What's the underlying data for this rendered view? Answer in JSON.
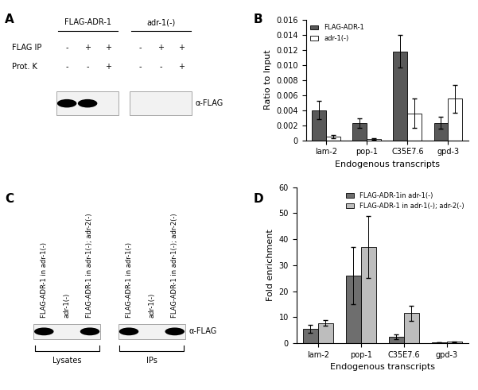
{
  "blots": [
    {
      "panel": "A",
      "groups": [
        {
          "label": "FLAG-ADR-1",
          "lanes": 3
        },
        {
          "label": "adr-1(-)",
          "lanes": 3
        }
      ],
      "rows": [
        {
          "label": "FLAG IP",
          "values": [
            "-",
            "+",
            "+",
            "-",
            "+",
            "+"
          ]
        },
        {
          "label": "Prot. K",
          "values": [
            "-",
            "-",
            "+",
            "-",
            "-",
            "+"
          ]
        }
      ],
      "bands": [
        true,
        true,
        false,
        false,
        false,
        false
      ],
      "antibody": "α-FLAG"
    },
    {
      "panel": "C",
      "lane_labels": [
        "FLAG-ADR-1 in adr-1(-)",
        "adr-1(-)",
        "FLAG-ADR-1 in adr-1(-); adr-2(-)",
        "FLAG-ADR-1 in adr-1(-)",
        "adr-1(-)",
        "FLAG-ADR-1 in adr-1(-); adr-2(-)"
      ],
      "groups": [
        {
          "label": "Lysates",
          "lanes": 3
        },
        {
          "label": "IPs",
          "lanes": 3
        }
      ],
      "bands": [
        true,
        false,
        true,
        true,
        false,
        true
      ],
      "antibody": "α-FLAG"
    }
  ],
  "chart_data": [
    {
      "panel": "B",
      "type": "bar",
      "categories": [
        "lam-2",
        "pop-1",
        "C35E7.6",
        "gpd-3"
      ],
      "x_label": "Endogenous transcripts",
      "y_label": "Ratio to Input",
      "ylim": [
        0,
        0.016
      ],
      "yticks": [
        0,
        0.002,
        0.004,
        0.006,
        0.008,
        {
          "value": 0.01,
          "label": "0.010"
        },
        0.012,
        0.014,
        0.016
      ],
      "legend": "upper left",
      "series": [
        {
          "name": "FLAG-ADR-1",
          "color": "#595959",
          "values": [
            0.004,
            0.0023,
            0.0118,
            0.0023
          ],
          "errors": [
            0.0012,
            0.0006,
            0.0022,
            0.0008
          ]
        },
        {
          "name": "adr-1(-)",
          "color": "#ffffff",
          "values": [
            0.0005,
            0.0002,
            0.0036,
            0.0055
          ],
          "errors": [
            0.0002,
            0.0001,
            0.0019,
            0.0018
          ]
        }
      ]
    },
    {
      "panel": "D",
      "type": "bar",
      "categories": [
        "lam-2",
        "pop-1",
        "C35E7.6",
        "gpd-3"
      ],
      "x_label": "Endogenous transcripts",
      "y_label": "Fold enrichment",
      "ylim": [
        0,
        60
      ],
      "yticks": [
        0,
        10,
        20,
        30,
        40,
        50,
        60
      ],
      "legend": "upper right",
      "series": [
        {
          "name": "FLAG-ADR-1in adr-1(-)",
          "color": "#6e6e6e",
          "values": [
            5.5,
            26,
            2.5,
            0.3
          ],
          "errors": [
            1.5,
            11,
            0.8,
            0.1
          ]
        },
        {
          "name": "FLAG-ADR-1 in adr-1(-); adr-2(-)",
          "color": "#bdbdbd",
          "values": [
            7.8,
            37,
            11.5,
            0.5
          ],
          "errors": [
            1.2,
            12,
            3,
            0.1
          ]
        }
      ]
    }
  ]
}
